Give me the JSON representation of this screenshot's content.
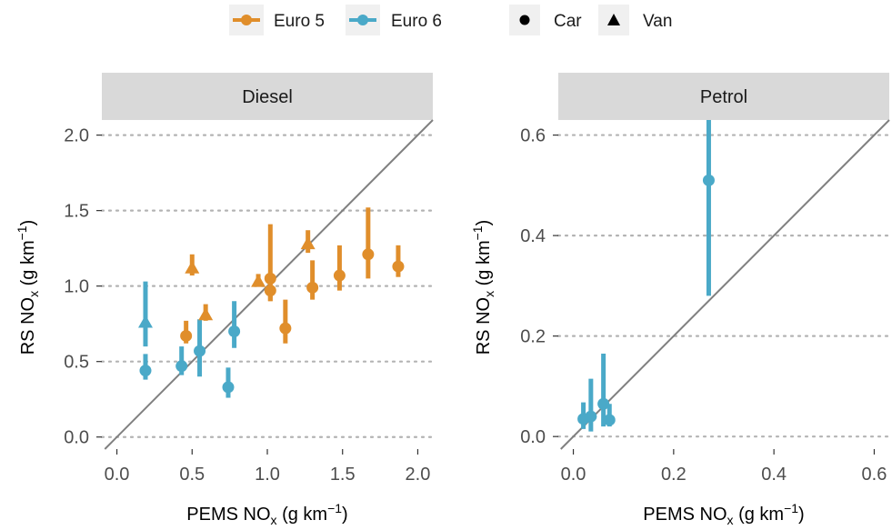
{
  "colors": {
    "euro5": "#e08e2b",
    "euro6": "#4aa9c8",
    "strip_bg": "#d9d9d9",
    "gridline": "#b3b3b3",
    "reference_line": "#808080",
    "legend_key_bg": "#f0f0f0"
  },
  "legend": {
    "euro5": "Euro 5",
    "euro6": "Euro 6",
    "car": "Car",
    "van": "Van"
  },
  "chart_data": [
    {
      "type": "scatter",
      "panel": "Diesel",
      "xlabel": "PEMS NOx (g km−1)",
      "ylabel": "RS NOx (g km−1)",
      "xlim": [
        -0.1,
        2.1
      ],
      "ylim": [
        -0.08,
        2.1
      ],
      "x_ticks": [
        0.0,
        0.5,
        1.0,
        1.5,
        2.0
      ],
      "x_tick_labels": [
        "0.0",
        "0.5",
        "1.0",
        "1.5",
        "2.0"
      ],
      "y_ticks": [
        0.0,
        0.5,
        1.0,
        1.5,
        2.0
      ],
      "y_tick_labels": [
        "0.0",
        "0.5",
        "1.0",
        "1.5",
        "2.0"
      ],
      "reference_line": "y = x",
      "grid": "horizontal dotted",
      "points": [
        {
          "euro": "Euro 6",
          "type": "Van",
          "x": 0.19,
          "y": 0.76,
          "ymin": 0.6,
          "ymax": 1.03
        },
        {
          "euro": "Euro 6",
          "type": "Car",
          "x": 0.19,
          "y": 0.44,
          "ymin": 0.38,
          "ymax": 0.55
        },
        {
          "euro": "Euro 6",
          "type": "Car",
          "x": 0.43,
          "y": 0.47,
          "ymin": 0.41,
          "ymax": 0.6
        },
        {
          "euro": "Euro 6",
          "type": "Car",
          "x": 0.55,
          "y": 0.57,
          "ymin": 0.4,
          "ymax": 0.78
        },
        {
          "euro": "Euro 6",
          "type": "Car",
          "x": 0.74,
          "y": 0.33,
          "ymin": 0.26,
          "ymax": 0.46
        },
        {
          "euro": "Euro 6",
          "type": "Car",
          "x": 0.78,
          "y": 0.7,
          "ymin": 0.59,
          "ymax": 0.9
        },
        {
          "euro": "Euro 5",
          "type": "Car",
          "x": 0.46,
          "y": 0.67,
          "ymin": 0.62,
          "ymax": 0.77
        },
        {
          "euro": "Euro 5",
          "type": "Van",
          "x": 0.5,
          "y": 1.12,
          "ymin": 1.07,
          "ymax": 1.21
        },
        {
          "euro": "Euro 5",
          "type": "Van",
          "x": 0.59,
          "y": 0.81,
          "ymin": 0.77,
          "ymax": 0.88
        },
        {
          "euro": "Euro 5",
          "type": "Van",
          "x": 0.94,
          "y": 1.03,
          "ymin": 1.0,
          "ymax": 1.08
        },
        {
          "euro": "Euro 5",
          "type": "Car",
          "x": 1.02,
          "y": 1.05,
          "ymin": 0.9,
          "ymax": 1.41
        },
        {
          "euro": "Euro 5",
          "type": "Car",
          "x": 1.02,
          "y": 0.97,
          "ymin": 0.9,
          "ymax": 1.04
        },
        {
          "euro": "Euro 5",
          "type": "Car",
          "x": 1.12,
          "y": 0.72,
          "ymin": 0.62,
          "ymax": 0.91
        },
        {
          "euro": "Euro 5",
          "type": "Van",
          "x": 1.27,
          "y": 1.28,
          "ymin": 1.22,
          "ymax": 1.37
        },
        {
          "euro": "Euro 5",
          "type": "Car",
          "x": 1.3,
          "y": 0.99,
          "ymin": 0.91,
          "ymax": 1.17
        },
        {
          "euro": "Euro 5",
          "type": "Car",
          "x": 1.48,
          "y": 1.07,
          "ymin": 0.97,
          "ymax": 1.27
        },
        {
          "euro": "Euro 5",
          "type": "Car",
          "x": 1.67,
          "y": 1.21,
          "ymin": 1.05,
          "ymax": 1.52
        },
        {
          "euro": "Euro 5",
          "type": "Car",
          "x": 1.87,
          "y": 1.13,
          "ymin": 1.06,
          "ymax": 1.27
        }
      ]
    },
    {
      "type": "scatter",
      "panel": "Petrol",
      "xlabel": "PEMS NOx (g km−1)",
      "ylabel": "RS NOx (g km−1)",
      "xlim": [
        -0.03,
        0.63
      ],
      "ylim": [
        -0.025,
        0.63
      ],
      "x_ticks": [
        0.0,
        0.2,
        0.4,
        0.6
      ],
      "x_tick_labels": [
        "0.0",
        "0.2",
        "0.4",
        "0.6"
      ],
      "y_ticks": [
        0.0,
        0.2,
        0.4,
        0.6
      ],
      "y_tick_labels": [
        "0.0",
        "0.2",
        "0.4",
        "0.6"
      ],
      "reference_line": "y = x",
      "grid": "horizontal dotted",
      "points": [
        {
          "euro": "Euro 6",
          "type": "Car",
          "x": 0.27,
          "y": 0.51,
          "ymin": 0.28,
          "ymax": 0.63
        },
        {
          "euro": "Euro 6",
          "type": "Car",
          "x": 0.06,
          "y": 0.065,
          "ymin": 0.02,
          "ymax": 0.165
        },
        {
          "euro": "Euro 6",
          "type": "Car",
          "x": 0.035,
          "y": 0.04,
          "ymin": 0.01,
          "ymax": 0.115
        },
        {
          "euro": "Euro 6",
          "type": "Car",
          "x": 0.02,
          "y": 0.035,
          "ymin": 0.015,
          "ymax": 0.068
        },
        {
          "euro": "Euro 6",
          "type": "Car",
          "x": 0.072,
          "y": 0.033,
          "ymin": 0.02,
          "ymax": 0.065
        }
      ]
    }
  ]
}
